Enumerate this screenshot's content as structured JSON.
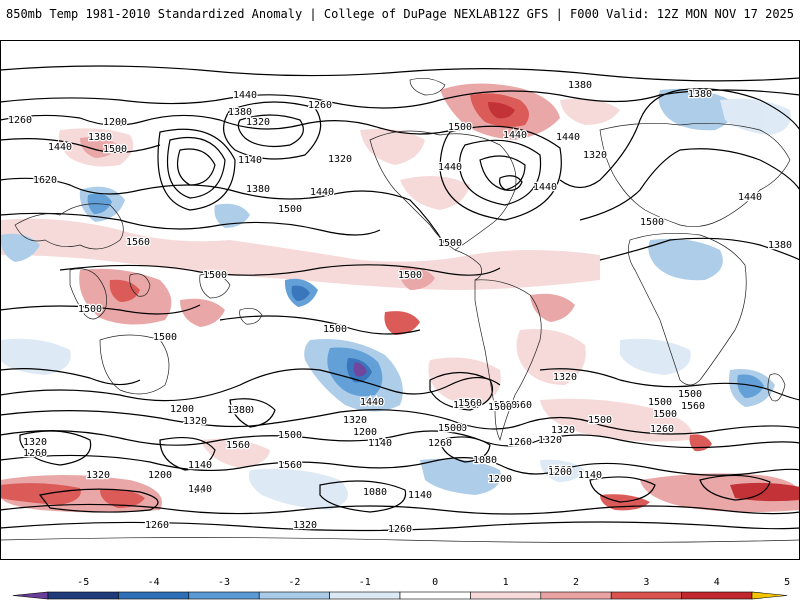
{
  "header": {
    "title_left": "850mb Temp 1981-2010 Standardized Anomaly | College of DuPage NEXLAB",
    "title_right": "12Z GFS | F000 Valid: 12Z MON NOV 17 2025"
  },
  "colorbar": {
    "ticks": [
      "-5",
      "-4",
      "-3",
      "-2",
      "-1",
      "0",
      "1",
      "2",
      "3",
      "4",
      "5"
    ],
    "colors": [
      "#6a3d9a",
      "#1f3b7a",
      "#2f6fb8",
      "#5a9bd5",
      "#a9cbe8",
      "#dce9f5",
      "#ffffff",
      "#f6d9d9",
      "#e9a3a3",
      "#d9534f",
      "#c0282d",
      "#8e0f1a",
      "#f5c400"
    ]
  },
  "contour_labels": [
    {
      "text": "1440"
    },
    {
      "text": "1260"
    },
    {
      "text": "1380"
    },
    {
      "text": "1320"
    },
    {
      "text": "1260"
    },
    {
      "text": "1200"
    },
    {
      "text": "1380"
    },
    {
      "text": "1440"
    },
    {
      "text": "1500"
    },
    {
      "text": "1140"
    },
    {
      "text": "1320"
    },
    {
      "text": "1620"
    },
    {
      "text": "1380"
    },
    {
      "text": "1440"
    },
    {
      "text": "1500"
    },
    {
      "text": "1560"
    },
    {
      "text": "1500"
    },
    {
      "text": "1500"
    },
    {
      "text": "1500"
    },
    {
      "text": "1500"
    },
    {
      "text": "1500"
    },
    {
      "text": "1440"
    },
    {
      "text": "1500"
    },
    {
      "text": "1500"
    },
    {
      "text": "1440"
    },
    {
      "text": "1440"
    },
    {
      "text": "1380"
    },
    {
      "text": "1440"
    },
    {
      "text": "1380"
    },
    {
      "text": "1320"
    },
    {
      "text": "1500"
    },
    {
      "text": "1440"
    },
    {
      "text": "1380"
    },
    {
      "text": "1320"
    },
    {
      "text": "1500"
    },
    {
      "text": "1560"
    },
    {
      "text": "1500"
    },
    {
      "text": "1560"
    },
    {
      "text": "1320"
    },
    {
      "text": "1500"
    },
    {
      "text": "1560"
    },
    {
      "text": "1560"
    },
    {
      "text": "1500"
    },
    {
      "text": "1440"
    },
    {
      "text": "1560"
    },
    {
      "text": "1500"
    },
    {
      "text": "1320"
    },
    {
      "text": "1200"
    },
    {
      "text": "1380"
    },
    {
      "text": "1500"
    },
    {
      "text": "1260"
    },
    {
      "text": "1560"
    },
    {
      "text": "1500"
    },
    {
      "text": "1080"
    },
    {
      "text": "1140"
    },
    {
      "text": "1200"
    },
    {
      "text": "1320"
    },
    {
      "text": "1260"
    },
    {
      "text": "1320"
    },
    {
      "text": "1260"
    },
    {
      "text": "1200"
    },
    {
      "text": "1140"
    },
    {
      "text": "1380"
    },
    {
      "text": "1560"
    },
    {
      "text": "1500"
    },
    {
      "text": "1440"
    },
    {
      "text": "1320"
    },
    {
      "text": "1200"
    },
    {
      "text": "1140"
    },
    {
      "text": "1380"
    },
    {
      "text": "1260"
    },
    {
      "text": "1080"
    },
    {
      "text": "1140"
    },
    {
      "text": "1200"
    },
    {
      "text": "1260"
    },
    {
      "text": "1320"
    },
    {
      "text": "1260"
    },
    {
      "text": "1320"
    },
    {
      "text": "1200"
    }
  ]
}
